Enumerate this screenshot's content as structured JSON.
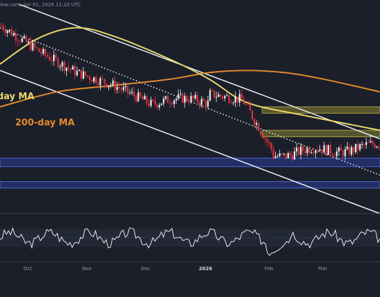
{
  "header": {
    "text": "iew.com, Apr 01, 2026 11:10 UTC"
  },
  "colors": {
    "background": "#1b1f2a",
    "up_candle": "#f0f2f5",
    "down_candle": "#e5343d",
    "ma50": "#e8d86a",
    "ma200": "#e48a2a",
    "channel": "#e9ecf2",
    "zone_yellow": "#6b6a2e",
    "zone_blue": "#26357a",
    "rsi_line": "#e9ecf2"
  },
  "chart_data": {
    "type": "candlestick",
    "labels": {
      "ma50": "day MA",
      "ma200": "200-day MA"
    },
    "x_ticks": [
      "Oct",
      "Nov",
      "Dec",
      "2026",
      "Feb",
      "Mar"
    ],
    "price_panel": {
      "candle_count": 180,
      "trend_start": 0.88,
      "trend_end": 0.28,
      "ma50_curve": [
        [
          0.0,
          0.7
        ],
        [
          0.1,
          0.82
        ],
        [
          0.2,
          0.87
        ],
        [
          0.3,
          0.83
        ],
        [
          0.45,
          0.72
        ],
        [
          0.55,
          0.63
        ],
        [
          0.65,
          0.52
        ],
        [
          0.8,
          0.46
        ],
        [
          1.0,
          0.39
        ]
      ],
      "ma200_curve": [
        [
          0.0,
          0.5
        ],
        [
          0.15,
          0.57
        ],
        [
          0.3,
          0.6
        ],
        [
          0.45,
          0.63
        ],
        [
          0.55,
          0.66
        ],
        [
          0.65,
          0.67
        ],
        [
          0.75,
          0.66
        ],
        [
          0.85,
          0.63
        ],
        [
          1.0,
          0.57
        ]
      ]
    },
    "channel_lines": [
      {
        "role": "upper-channel",
        "from": [
          0.05,
          0.98
        ],
        "to": [
          1.0,
          0.35
        ]
      },
      {
        "role": "lower-channel",
        "from": [
          0.0,
          0.67
        ],
        "to": [
          1.0,
          0.0
        ]
      },
      {
        "role": "dotted-trend",
        "from": [
          0.0,
          0.87
        ],
        "to": [
          1.0,
          0.18
        ]
      }
    ],
    "zones": [
      {
        "color": "yellow",
        "x_from": 0.69,
        "y_low": 0.47,
        "y_high": 0.5
      },
      {
        "color": "yellow",
        "x_from": 0.69,
        "y_low": 0.36,
        "y_high": 0.39
      },
      {
        "color": "blue",
        "x_from": 0.0,
        "y_low": 0.22,
        "y_high": 0.26
      },
      {
        "color": "blue",
        "x_from": 0.0,
        "y_low": 0.12,
        "y_high": 0.15
      }
    ],
    "rsi_panel": {
      "series_points": 180,
      "range": [
        0,
        100
      ]
    }
  }
}
